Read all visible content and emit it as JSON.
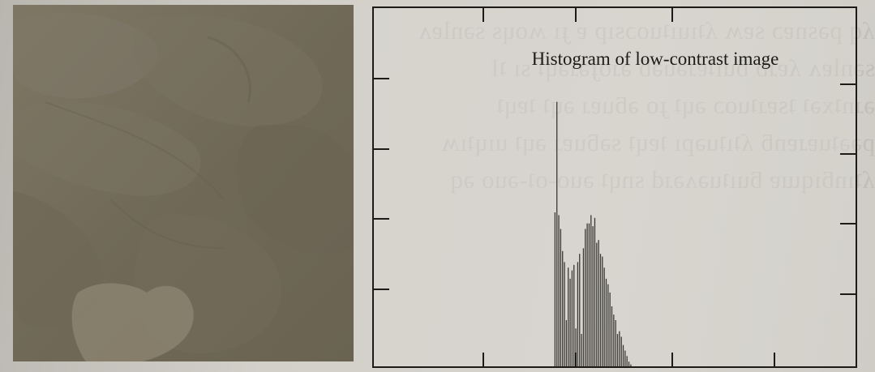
{
  "chart_data": {
    "type": "bar",
    "title": "Histogram of low-contrast image",
    "xlabel": "",
    "ylabel": "",
    "xlim": [
      0,
      255
    ],
    "grid": false,
    "legend": "none",
    "bar_color": "#3a3833",
    "x": [
      96,
      97,
      98,
      99,
      100,
      101,
      102,
      103,
      104,
      105,
      106,
      107,
      108,
      109,
      110,
      111,
      112,
      113,
      114,
      115,
      116,
      117,
      118,
      119,
      120,
      121,
      122,
      123,
      124,
      125,
      126,
      127,
      128,
      129,
      130,
      131,
      132,
      133,
      134,
      135,
      136
    ],
    "values": [
      0.56,
      0.96,
      0.55,
      0.5,
      0.42,
      0.38,
      0.17,
      0.36,
      0.32,
      0.35,
      0.37,
      0.14,
      0.38,
      0.41,
      0.12,
      0.43,
      0.5,
      0.52,
      0.52,
      0.55,
      0.51,
      0.54,
      0.45,
      0.46,
      0.41,
      0.4,
      0.36,
      0.32,
      0.3,
      0.27,
      0.22,
      0.19,
      0.17,
      0.12,
      0.13,
      0.11,
      0.08,
      0.06,
      0.04,
      0.02,
      0.01
    ]
  }
}
